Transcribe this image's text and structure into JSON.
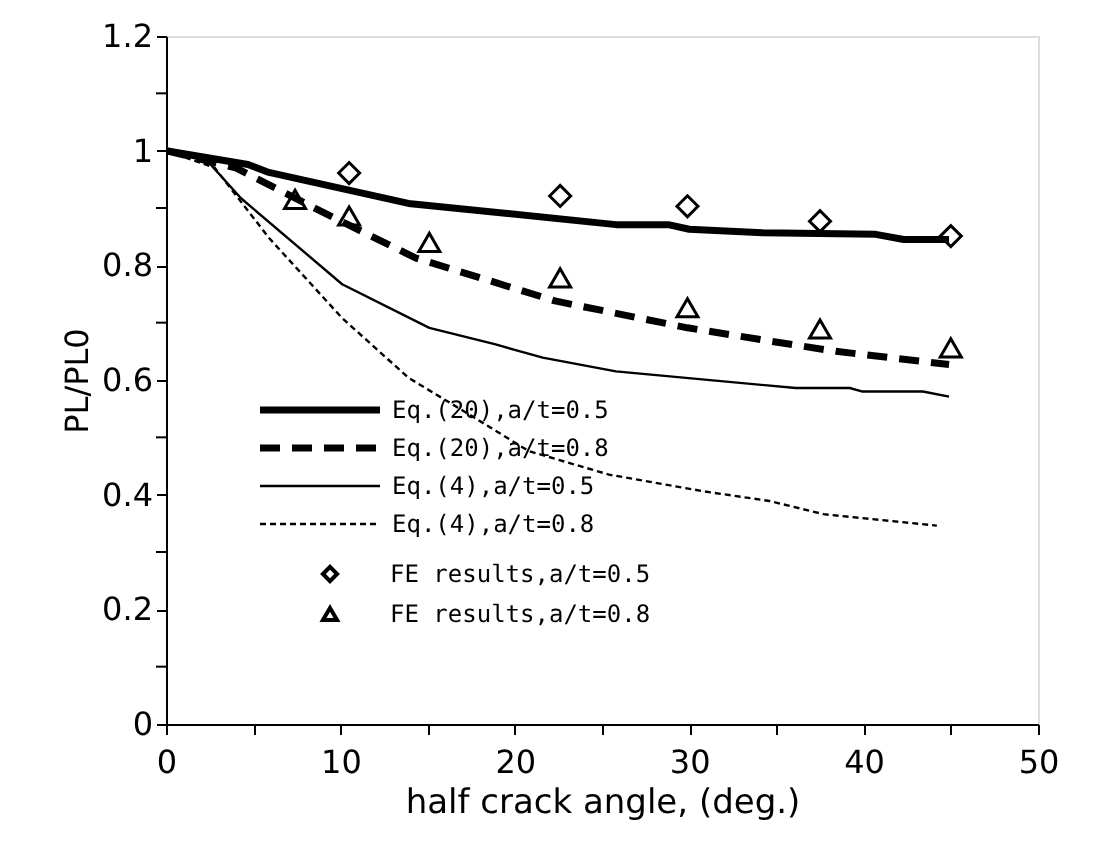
{
  "chart_data": {
    "type": "line",
    "xlabel": "half crack angle,  (deg.)",
    "ylabel": "PL/PL0",
    "xlim": [
      0,
      50
    ],
    "ylim": [
      0,
      1.2
    ],
    "xticks": [
      0,
      {
        "value": 5,
        "label": null
      },
      10,
      {
        "value": 15,
        "label": null
      },
      20,
      {
        "value": 25,
        "label": null
      },
      30,
      {
        "value": 35,
        "label": null
      },
      40,
      {
        "value": 45,
        "label": null
      },
      50
    ],
    "yticks": [
      0,
      {
        "value": 0.1,
        "label": null
      },
      0.2,
      {
        "value": 0.3,
        "label": null
      },
      0.4,
      {
        "value": 0.5,
        "label": null
      },
      0.6,
      {
        "value": 0.7,
        "label": null
      },
      0.8,
      {
        "value": 0.9,
        "label": null
      },
      1,
      {
        "value": 1.1,
        "label": null
      },
      1.2
    ],
    "grid": false,
    "legend": "left",
    "series": [
      {
        "name": "Eq.(20),a/t=0.5",
        "line_style": "solid",
        "color": "#000000",
        "x": [
          0,
          4.7,
          5.9,
          13.9,
          25.8,
          28.8,
          30,
          34.2,
          40.7,
          42.3,
          44.9
        ],
        "values": [
          1,
          0.976,
          0.962,
          0.908,
          0.871,
          0.871,
          0.863,
          0.857,
          0.854,
          0.845,
          0.845
        ]
      },
      {
        "name": "Eq.(20),a/t=0.8",
        "line_style": "dashed",
        "color": "#000000",
        "x": [
          0,
          4.0,
          8.9,
          14.3,
          22.3,
          29.9,
          34.6,
          38.4,
          44.9
        ],
        "values": [
          1,
          0.97,
          0.894,
          0.813,
          0.738,
          0.691,
          0.668,
          0.65,
          0.627
        ]
      },
      {
        "name": "Eq.(4),a/t=0.5",
        "line_style": "solid",
        "color": "#000000",
        "x": [
          0,
          2.4,
          4.3,
          10.1,
          15.1,
          18.9,
          21.6,
          25.8,
          36.1,
          39.2,
          39.9,
          43.4,
          44.9
        ],
        "values": [
          1,
          0.981,
          0.917,
          0.767,
          0.691,
          0.662,
          0.639,
          0.615,
          0.586,
          0.586,
          0.58,
          0.58,
          0.571
        ]
      },
      {
        "name": "Eq.(4),a/t=0.8",
        "line_style": "dotted",
        "color": "#000000",
        "x": [
          0,
          2.8,
          5.9,
          10.1,
          13.9,
          17.7,
          20.8,
          25.4,
          30.8,
          34.6,
          37.7,
          44.2
        ],
        "values": [
          1,
          0.97,
          0.848,
          0.708,
          0.604,
          0.534,
          0.476,
          0.435,
          0.406,
          0.389,
          0.366,
          0.346
        ]
      },
      {
        "name": "FE results,a/t=0.5",
        "type": "scatter",
        "marker": "diamond",
        "color": "#000000",
        "x": [
          10.5,
          22.6,
          29.9,
          37.5,
          45
        ],
        "values": [
          0.961,
          0.921,
          0.903,
          0.877,
          0.851
        ]
      },
      {
        "name": "FE results,a/t=0.8",
        "type": "scatter",
        "marker": "triangle",
        "color": "#000000",
        "x": [
          7.4,
          10.5,
          15.1,
          22.6,
          29.9,
          37.5,
          45
        ],
        "values": [
          0.915,
          0.886,
          0.84,
          0.778,
          0.726,
          0.689,
          0.656
        ]
      }
    ]
  }
}
